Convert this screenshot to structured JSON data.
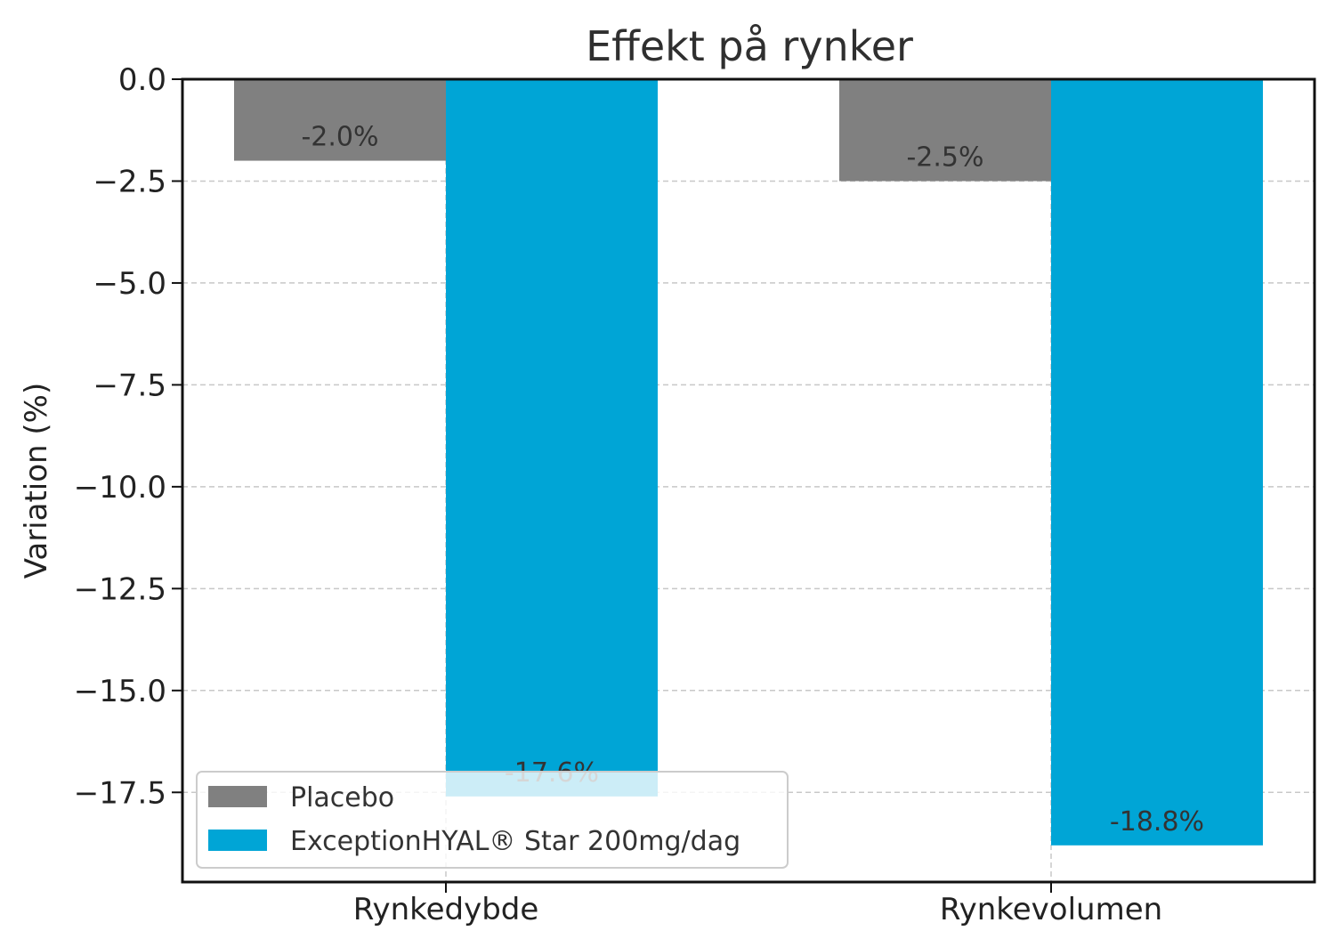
{
  "chart_data": {
    "type": "bar",
    "title": "Effekt på rynker",
    "xlabel": "",
    "ylabel": "Variation (%)",
    "categories": [
      "Rynkedybde",
      "Rynkevolumen"
    ],
    "series": [
      {
        "name": "Placebo",
        "values": [
          -2.0,
          -2.5
        ],
        "labels": [
          "-2.0%",
          "-2.5%"
        ],
        "color": "#808080"
      },
      {
        "name": "ExceptionHYAL® Star 200mg/dag",
        "values": [
          -17.6,
          -18.8
        ],
        "labels": [
          "-17.6%",
          "-18.8%"
        ],
        "color": "#00a5d6"
      }
    ],
    "ylim": [
      -19.7,
      0.0
    ],
    "yticks": [
      0.0,
      -2.5,
      -5.0,
      -7.5,
      -10.0,
      -12.5,
      -15.0,
      -17.5
    ],
    "ytick_labels": [
      "0.0",
      "−2.5",
      "−5.0",
      "−7.5",
      "−10.0",
      "−12.5",
      "−15.0",
      "−17.5"
    ],
    "grid": true,
    "legend": "lower-left"
  }
}
